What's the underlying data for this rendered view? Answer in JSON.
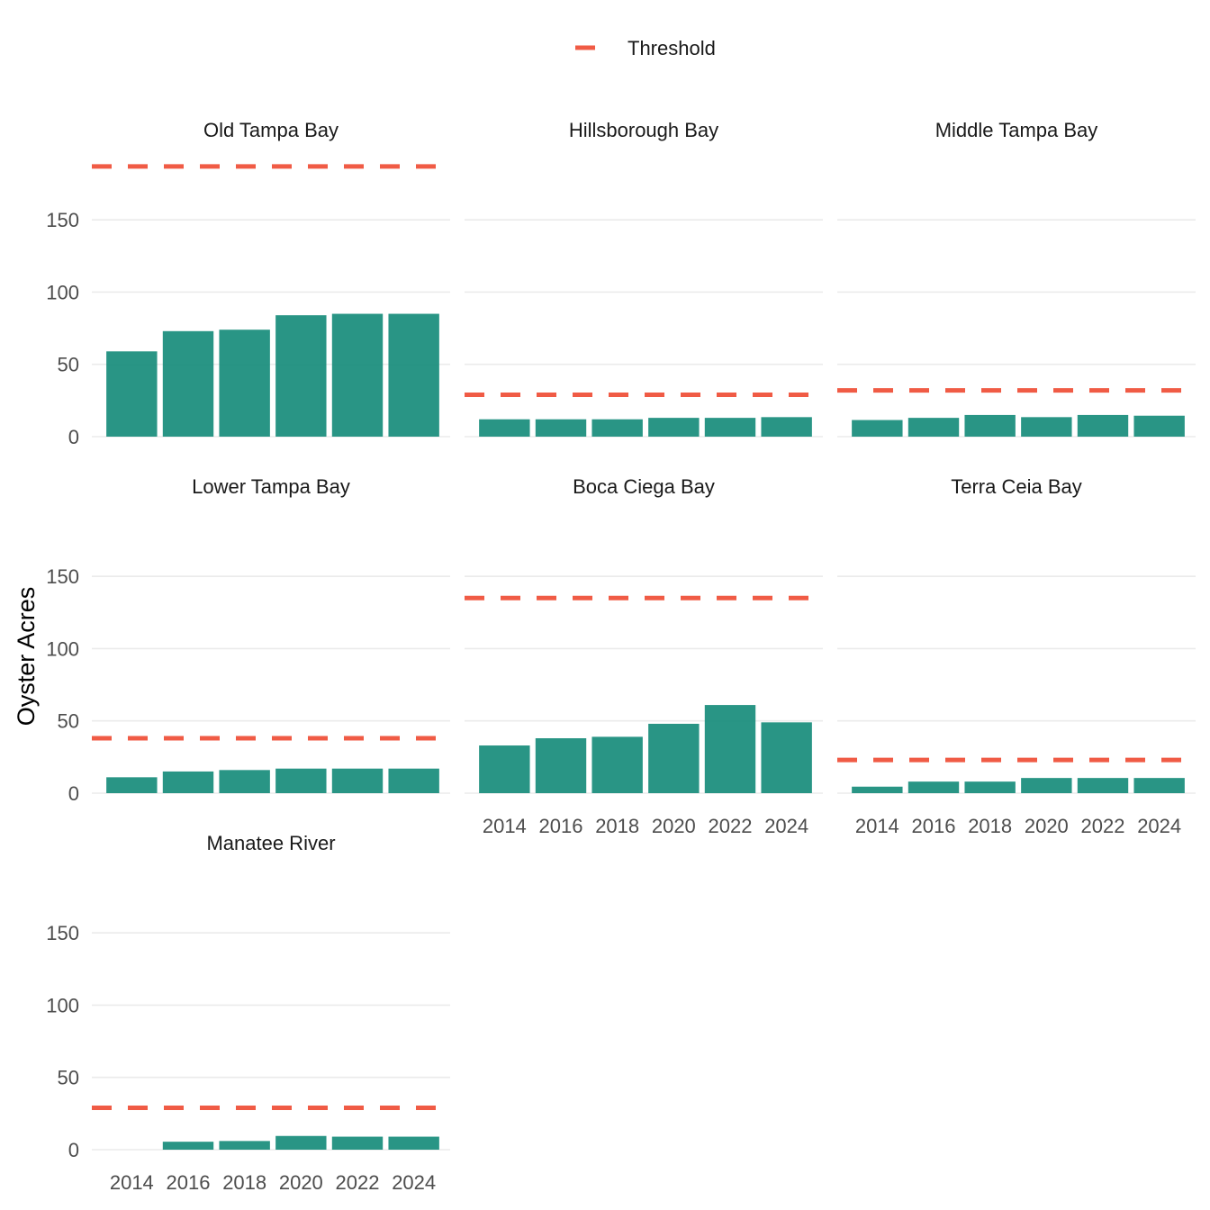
{
  "chart_data": {
    "type": "bar",
    "ylabel": "Oyster Acres",
    "xlabel": "",
    "ylim": [
      0,
      190
    ],
    "y_ticks": [
      0,
      50,
      100,
      150
    ],
    "x_ticks": [
      2014,
      2016,
      2018,
      2020,
      2022,
      2024
    ],
    "categories": [
      2014,
      2016,
      2018,
      2020,
      2022,
      2024
    ],
    "legend": {
      "label": "Threshold",
      "position": "top"
    },
    "grid": true,
    "colors": {
      "bar": "#178C7B",
      "threshold": "#F05B45",
      "grid": "#EBEBEB"
    },
    "panels": [
      {
        "name": "Old Tampa Bay",
        "threshold": 187,
        "values": [
          59,
          73,
          74,
          84,
          85,
          85
        ]
      },
      {
        "name": "Hillsborough Bay",
        "threshold": 29,
        "values": [
          12,
          12,
          12,
          13,
          13,
          13.5
        ]
      },
      {
        "name": "Middle Tampa Bay",
        "threshold": 32,
        "values": [
          11.5,
          13,
          15,
          13.5,
          15,
          14.5
        ]
      },
      {
        "name": "Lower Tampa Bay",
        "threshold": 38,
        "values": [
          11,
          15,
          16,
          17,
          17,
          17
        ]
      },
      {
        "name": "Boca Ciega Bay",
        "threshold": 135,
        "values": [
          33,
          38,
          39,
          48,
          61,
          49
        ]
      },
      {
        "name": "Terra Ceia Bay",
        "threshold": 23,
        "values": [
          4.5,
          8,
          8,
          10.5,
          10.5,
          10.5
        ]
      },
      {
        "name": "Manatee River",
        "threshold": 29,
        "values": [
          0,
          5.5,
          6,
          9.5,
          9,
          9
        ]
      }
    ]
  }
}
